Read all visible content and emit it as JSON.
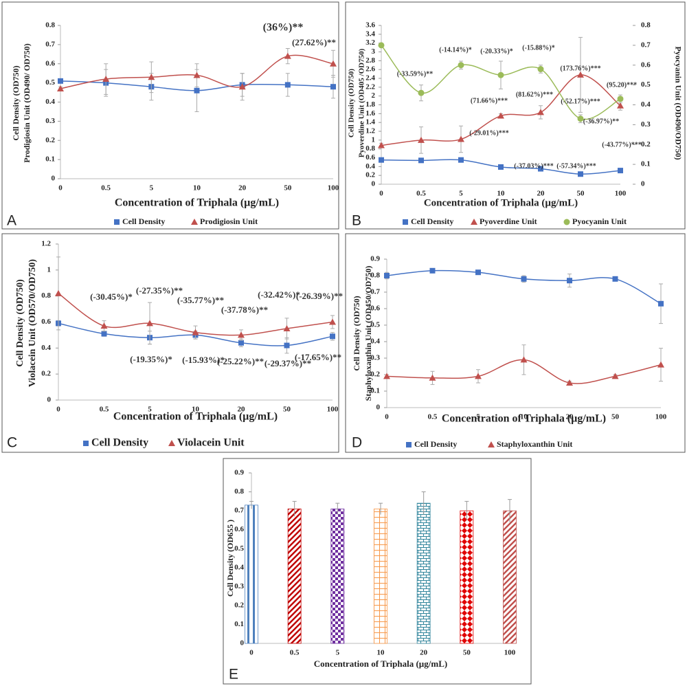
{
  "chart_data": [
    {
      "type": "line",
      "panel_label": "A",
      "categories": [
        "0",
        "0.5",
        "5",
        "10",
        "20",
        "50",
        "100"
      ],
      "series": [
        {
          "name": "Cell Density",
          "color": "#4472c4",
          "marker": "square",
          "values": [
            0.51,
            0.5,
            0.48,
            0.46,
            0.49,
            0.49,
            0.48
          ],
          "errors": [
            0.01,
            0.07,
            0.07,
            0.11,
            0.06,
            0.06,
            0.06
          ]
        },
        {
          "name": "Prodigiosin Unit",
          "color": "#c0504d",
          "marker": "triangle",
          "values": [
            0.47,
            0.52,
            0.53,
            0.54,
            0.48,
            0.64,
            0.6
          ],
          "errors": [
            0.01,
            0.08,
            0.08,
            0.06,
            0.07,
            0.04,
            0.07
          ]
        }
      ],
      "ylim": [
        0,
        0.8
      ],
      "yticks": [
        0,
        0.1,
        0.2,
        0.3,
        0.4,
        0.5,
        0.6,
        0.7,
        0.8
      ],
      "ylabel": [
        "Cell Density (OD750)",
        "Prodigiosin Unit (OD490/ OD750)"
      ],
      "xlabel": "Concentration of Triphala (µg/mL)",
      "annotations": [
        "(36%)**",
        "(27.62%)**"
      ]
    },
    {
      "type": "line",
      "panel_label": "B",
      "categories": [
        "0",
        "0.5",
        "5",
        "10",
        "20",
        "50",
        "100"
      ],
      "series": [
        {
          "name": "Cell Density",
          "color": "#4472c4",
          "marker": "square",
          "values": [
            0.55,
            0.54,
            0.55,
            0.39,
            0.35,
            0.23,
            0.31
          ],
          "errors": [
            0.03,
            0.03,
            0.03,
            0.03,
            0.03,
            0.03,
            0.03
          ]
        },
        {
          "name": "Pyoverdine Unit",
          "color": "#c0504d",
          "marker": "triangle",
          "values": [
            0.88,
            1.0,
            1.02,
            1.55,
            1.63,
            2.48,
            1.78
          ],
          "errors": [
            0.05,
            0.3,
            0.3,
            0.05,
            0.15,
            0.85,
            0.1
          ]
        },
        {
          "name": "Pyocyanin Unit",
          "color": "#9bbb59",
          "marker": "circle",
          "axis": "y2",
          "values": [
            0.7,
            0.46,
            0.6,
            0.55,
            0.58,
            0.33,
            0.43
          ],
          "errors": [
            0.01,
            0.04,
            0.02,
            0.07,
            0.02,
            0.02,
            0.02
          ]
        }
      ],
      "ylim": [
        0,
        3.6
      ],
      "yticks": [
        0,
        0.2,
        0.4,
        0.6,
        0.8,
        1,
        1.2,
        1.4,
        1.6,
        1.8,
        2,
        2.2,
        2.4,
        2.6,
        2.8,
        3,
        3.2,
        3.4,
        3.6
      ],
      "y2lim": [
        0,
        0.8
      ],
      "y2ticks": [
        0,
        0.1,
        0.2,
        0.3,
        0.4,
        0.5,
        0.6,
        0.7,
        0.8
      ],
      "ylabel": [
        "Cell Density (OD750)",
        "Pyoverdine Unit (OD405 /OD750)"
      ],
      "y2label": "Pyocyanin Unit (OD490/OD750)",
      "xlabel": "Concentration of Triphala (µg/mL)",
      "annotations": [
        "(-33.59%)**",
        "(-14.14%)*",
        "(-20.33%)*",
        "(-15.88%)*",
        "(173.76%)***",
        "(95.20)***",
        "(71.66%)***",
        "(81.62%)***",
        "(-52.17%)***",
        "(-36.97%)**",
        "(-29.01%)***",
        "(-37.03%)***",
        "(-57.34%)***",
        "(-43.77%)***"
      ]
    },
    {
      "type": "line",
      "panel_label": "C",
      "categories": [
        "0",
        "0.5",
        "5",
        "10",
        "20",
        "50",
        "100"
      ],
      "series": [
        {
          "name": "Cell Density",
          "color": "#4472c4",
          "marker": "square",
          "values": [
            0.59,
            0.51,
            0.48,
            0.5,
            0.44,
            0.42,
            0.49
          ],
          "errors": [
            0.02,
            0.02,
            0.05,
            0.03,
            0.03,
            0.06,
            0.03
          ]
        },
        {
          "name": "Violacein Unit",
          "color": "#c0504d",
          "marker": "triangle",
          "values": [
            0.82,
            0.57,
            0.59,
            0.52,
            0.5,
            0.55,
            0.6
          ],
          "errors": [
            0.28,
            0.04,
            0.16,
            0.05,
            0.04,
            0.08,
            0.05
          ]
        }
      ],
      "ylim": [
        0,
        1.2
      ],
      "yticks": [
        0,
        0.2,
        0.4,
        0.6,
        0.8,
        1,
        1.2
      ],
      "ylabel": [
        "Cell Density (OD750)",
        "Violacein Unit (OD570/OD750)"
      ],
      "xlabel": "Concentration of Triphala (µg/mL)",
      "annotations": [
        "(-30.45%)*",
        "(-27.35%)**",
        "(-35.77%)**",
        "(-37.78%)**",
        "(-32.42%)*",
        "(-26.39%)**",
        "(-19.35%)*",
        "(-15.93%)*",
        "(-25.22%)**",
        "(-29.37%)**",
        "(-17.65%)**"
      ]
    },
    {
      "type": "line",
      "panel_label": "D",
      "categories": [
        "0",
        "0.5",
        "5",
        "10",
        "20",
        "50",
        "100"
      ],
      "series": [
        {
          "name": "Cell Density",
          "color": "#4472c4",
          "marker": "square",
          "values": [
            0.8,
            0.83,
            0.82,
            0.78,
            0.77,
            0.78,
            0.63
          ],
          "errors": [
            0.02,
            0.01,
            0.01,
            0.02,
            0.04,
            0.01,
            0.12
          ]
        },
        {
          "name": "Staphyloxanthin Unit",
          "color": "#c0504d",
          "marker": "triangle",
          "values": [
            0.19,
            0.18,
            0.19,
            0.29,
            0.15,
            0.19,
            0.26
          ],
          "errors": [
            0.01,
            0.04,
            0.04,
            0.09,
            0.01,
            0.01,
            0.1
          ]
        }
      ],
      "ylim": [
        0,
        0.9
      ],
      "yticks": [
        0,
        0.1,
        0.2,
        0.3,
        0.4,
        0.5,
        0.6,
        0.7,
        0.8,
        0.9
      ],
      "ylabel": [
        "Cell Density (OD750)",
        "Staphyloxanthin Unit (OD450/OD750)"
      ],
      "xlabel": "Concentration of Triphala (µg/mL)"
    },
    {
      "type": "bar",
      "panel_label": "E",
      "categories": [
        "0",
        "0.5",
        "5",
        "10",
        "20",
        "50",
        "100"
      ],
      "values": [
        0.73,
        0.71,
        0.71,
        0.71,
        0.74,
        0.7,
        0.7
      ],
      "errors": [
        0.02,
        0.04,
        0.03,
        0.03,
        0.06,
        0.05,
        0.06
      ],
      "colors": [
        "#4f81bd",
        "#c00000",
        "#7030a0",
        "#f79646",
        "#31859c",
        "#e00000",
        "#c0504d"
      ],
      "patterns": [
        "vertical-stripes",
        "diagonal-stripes",
        "checker",
        "grid",
        "brick",
        "diamonds",
        "diagonal-stripes"
      ],
      "ylim": [
        0,
        0.9
      ],
      "yticks": [
        0,
        0.1,
        0.2,
        0.3,
        0.4,
        0.5,
        0.6,
        0.7,
        0.8,
        0.9
      ],
      "ylabel": [
        "Cell Density (OD655 )"
      ],
      "xlabel": "Concentration of Triphala (µg/mL)"
    }
  ]
}
